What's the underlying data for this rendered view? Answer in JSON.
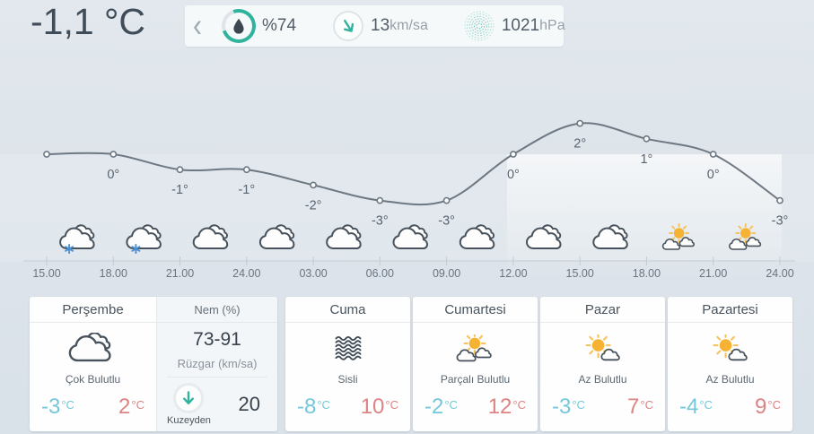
{
  "colors": {
    "accent_teal": "#2fb39c",
    "line_gray": "#6e7882",
    "min_temp": "#74c8d9",
    "max_temp": "#dd8383",
    "snowflake_blue": "#4a90d5",
    "sun_orange": "#f6b233",
    "text_dark": "#414c59"
  },
  "topbar": {
    "current_temperature": "-1,1 °C",
    "back_chevron": "‹",
    "humidity": {
      "icon": "humidity-gauge-icon",
      "value": "%74"
    },
    "wind": {
      "icon": "wind-direction-icon",
      "value": "13",
      "unit": "km/sa"
    },
    "pressure": {
      "icon": "pressure-ripple-icon",
      "value": "1021",
      "unit": "hPa"
    }
  },
  "chart_data": {
    "type": "line",
    "title": "",
    "x_tick_labels": [
      "15.00",
      "18.00",
      "21.00",
      "24.00",
      "03.00",
      "06.00",
      "09.00",
      "12.00",
      "15.00",
      "18.00",
      "21.00",
      "24.00"
    ],
    "values": [
      0,
      0,
      -1,
      -1,
      -2,
      -3,
      -3,
      0,
      2,
      1,
      0,
      -3
    ],
    "point_labels": [
      "",
      "0°",
      "-1°",
      "-1°",
      "-2°",
      "-3°",
      "-3°",
      "0°",
      "2°",
      "1°",
      "0°",
      "-3°"
    ],
    "hourly_icons": [
      "snow-cloud-icon",
      "snow-cloud-icon",
      "cloudy-icon",
      "cloudy-icon",
      "cloudy-icon",
      "cloudy-icon",
      "cloudy-icon",
      "cloudy-icon",
      "cloudy-icon",
      "partly-sunny-icon",
      "partly-sunny-icon"
    ],
    "ylim": [
      -4,
      3
    ],
    "grid": false,
    "line_color": "#6e7882"
  },
  "deg_unit": "°C",
  "days": [
    {
      "name": "Perşembe",
      "condition": "Çok Bulutlu",
      "icon": "cloudy",
      "min": "-3",
      "max": "2"
    },
    {
      "name": "Cuma",
      "condition": "Sisli",
      "icon": "fog",
      "min": "-8",
      "max": "10"
    },
    {
      "name": "Cumartesi",
      "condition": "Parçalı Bulutlu",
      "icon": "partly",
      "min": "-2",
      "max": "12"
    },
    {
      "name": "Pazar",
      "condition": "Az Bulutlu",
      "icon": "sun-cloud",
      "min": "-3",
      "max": "7"
    },
    {
      "name": "Pazartesi",
      "condition": "Az Bulutlu",
      "icon": "sun-cloud",
      "min": "-4",
      "max": "9"
    }
  ],
  "details": {
    "humidity_label": "Nem (%)",
    "humidity_range": "73-91",
    "wind_label": "Rüzgar (km/sa)",
    "wind_value": "20",
    "wind_direction": "Kuzeyden",
    "wind_direction_icon": "arrow-down-icon"
  }
}
